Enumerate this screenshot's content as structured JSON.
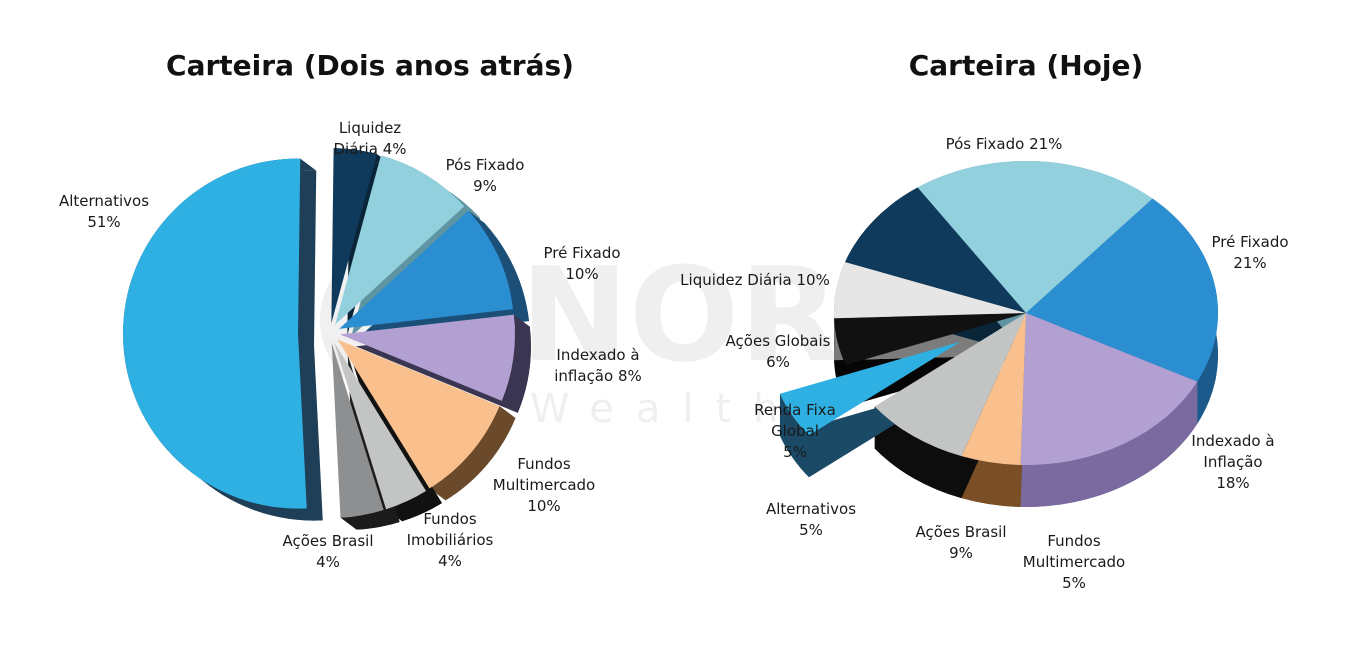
{
  "watermark": {
    "brand": "NORD",
    "sub": "Wealth"
  },
  "chart_data": [
    {
      "type": "pie",
      "title": "Carteira (Dois anos atrás)",
      "slices": [
        {
          "label": [
            "Alternativos",
            "51%"
          ],
          "value": 51,
          "color": "#2fb0e3",
          "side": "#1e3f57"
        },
        {
          "label": [
            "Liquidez",
            "Diária 4%"
          ],
          "value": 4,
          "color": "#0f3a5b",
          "side": "#0a2438"
        },
        {
          "label": [
            "Pós Fixado",
            "9%"
          ],
          "value": 9,
          "color": "#93d0de",
          "side": "#5f95a3"
        },
        {
          "label": [
            "Pré Fixado",
            "10%"
          ],
          "value": 10,
          "color": "#2a8ed1",
          "side": "#1b4f78"
        },
        {
          "label": [
            "Indexado à",
            "inflação 8%"
          ],
          "value": 8,
          "color": "#b3a0d2",
          "side": "#3a3550"
        },
        {
          "label": [
            "Fundos",
            "Multimercado",
            "10%"
          ],
          "value": 10,
          "color": "#f9c08e",
          "side": "#6b4a2b"
        },
        {
          "label": [
            "Fundos",
            "Imobiliários",
            "4%"
          ],
          "value": 4,
          "color": "#c3c5c5",
          "side": "#111111"
        },
        {
          "label": [
            "Ações Brasil",
            "4%"
          ],
          "value": 4,
          "color": "#8d8f90",
          "side": "#1b1b1b"
        }
      ]
    },
    {
      "type": "pie",
      "title": "Carteira (Hoje)",
      "slices": [
        {
          "label": [
            "Pós Fixado 21%"
          ],
          "value": 21,
          "color": "#93d0de",
          "side": "#5f95a3"
        },
        {
          "label": [
            "Pré Fixado",
            "21%"
          ],
          "value": 21,
          "color": "#2a8ed1",
          "side": "#1b5a8a"
        },
        {
          "label": [
            "Indexado à",
            "Inflação",
            "18%"
          ],
          "value": 18,
          "color": "#b3a0d2",
          "side": "#7a6aa0"
        },
        {
          "label": [
            "Fundos",
            "Multimercado",
            "5%"
          ],
          "value": 5,
          "color": "#f9c08e",
          "side": "#7a4f25"
        },
        {
          "label": [
            "Ações Brasil",
            "9%"
          ],
          "value": 9,
          "color": "#c3c5c5",
          "side": "#0d0d0d"
        },
        {
          "label": [
            "Alternativos",
            "5%"
          ],
          "value": 5,
          "color": "#2fb0e3",
          "side": "#1a4a66"
        },
        {
          "label": [
            "Renda Fixa",
            "Global",
            "5%"
          ],
          "value": 5,
          "color": "#111111",
          "side": "#050505"
        },
        {
          "label": [
            "Ações Globais",
            "6%"
          ],
          "value": 6,
          "color": "#e6e6e6",
          "side": "#7c7c7c"
        },
        {
          "label": [
            "Liquidez Diária 10%"
          ],
          "value": 10,
          "color": "#0f3a5b",
          "side": "#0a2438"
        }
      ]
    }
  ]
}
